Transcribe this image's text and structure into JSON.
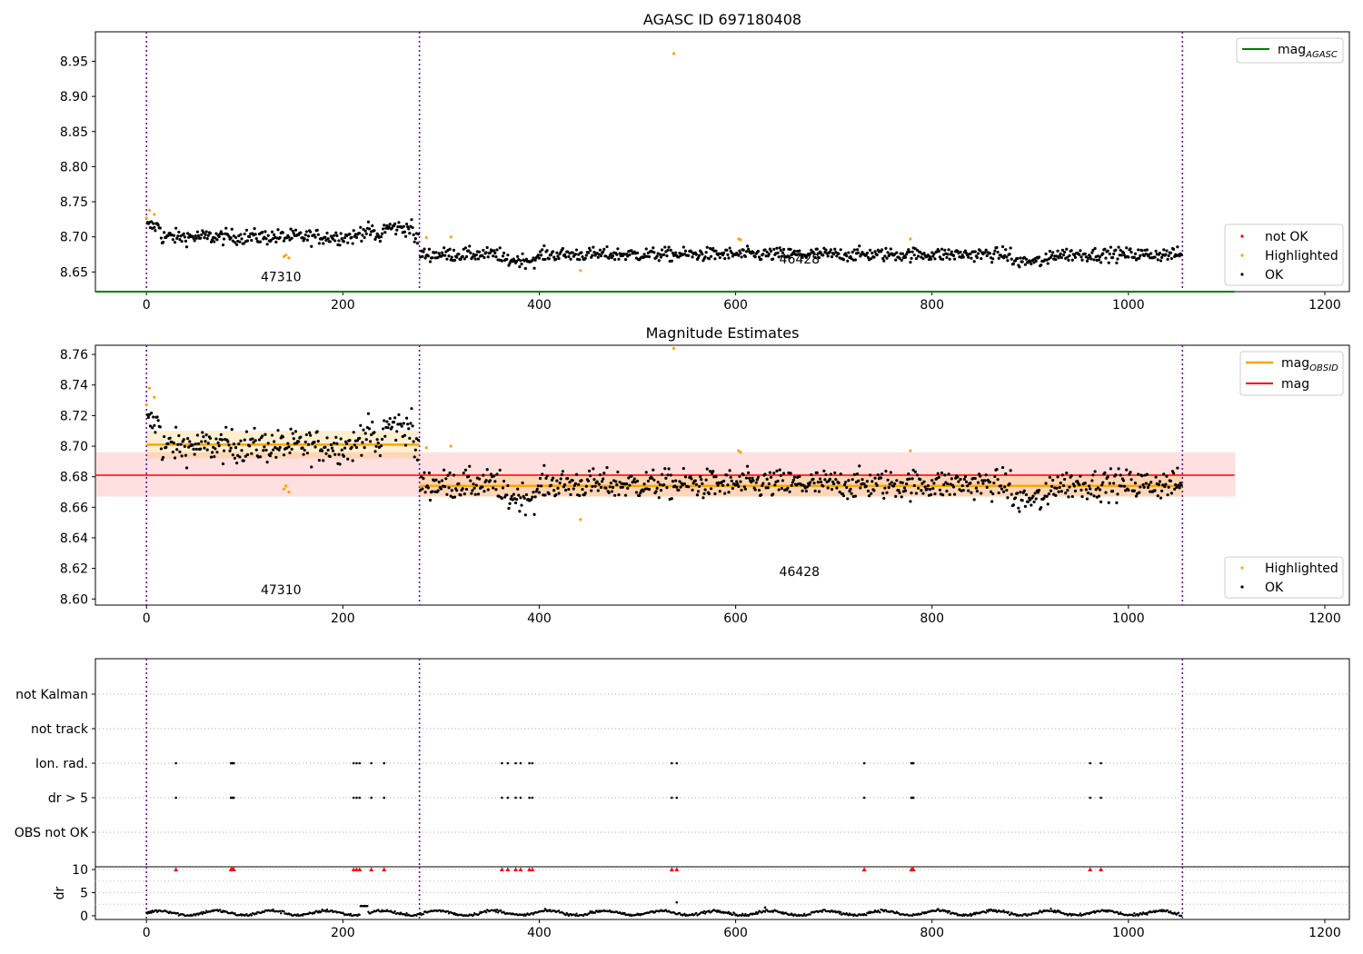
{
  "figure": {
    "title_top": "AGASC ID 697180408",
    "title_middle": "Magnitude Estimates"
  },
  "chart_data": [
    {
      "type": "scatter",
      "title": "AGASC ID 697180408",
      "xlim": [
        -52,
        1225
      ],
      "ylim": [
        8.622,
        8.992
      ],
      "xticks": [
        0,
        200,
        400,
        600,
        800,
        1000,
        1200
      ],
      "yticks": [
        8.65,
        8.7,
        8.75,
        8.8,
        8.85,
        8.9,
        8.95
      ],
      "obs_boundaries": [
        0,
        278,
        1055
      ],
      "obsid_labels": [
        {
          "text": "47310",
          "x": 137,
          "y": 8.637
        },
        {
          "text": "46428",
          "x": 665,
          "y": 8.662
        }
      ],
      "mag_agasc": 8.622,
      "legend_lines": [
        "mag_AGASC"
      ],
      "legend_points": [
        "not OK",
        "Highlighted",
        "OK"
      ],
      "series": [
        {
          "name": "OK",
          "segments": [
            {
              "x_start": 0,
              "x_end": 278,
              "base": 8.7,
              "scatter": 0.009,
              "profile": "obs1"
            },
            {
              "x_start": 278,
              "x_end": 1055,
              "base": 8.675,
              "scatter": 0.008,
              "profile": "obs2"
            }
          ]
        },
        {
          "name": "Highlighted",
          "points": [
            [
              0,
              8.727
            ],
            [
              3,
              8.738
            ],
            [
              8,
              8.732
            ],
            [
              140,
              8.672
            ],
            [
              142,
              8.674
            ],
            [
              145,
              8.67
            ],
            [
              285,
              8.699
            ],
            [
              310,
              8.7
            ],
            [
              442,
              8.652
            ],
            [
              537,
              8.961
            ],
            [
              605,
              8.696
            ],
            [
              603,
              8.697
            ],
            [
              778,
              8.697
            ]
          ]
        },
        {
          "name": "not OK",
          "points": []
        }
      ]
    },
    {
      "type": "scatter",
      "title": "Magnitude Estimates",
      "xlim": [
        -52,
        1225
      ],
      "ylim": [
        8.596,
        8.766
      ],
      "xticks": [
        0,
        200,
        400,
        600,
        800,
        1000,
        1200
      ],
      "yticks": [
        8.6,
        8.62,
        8.64,
        8.66,
        8.68,
        8.7,
        8.72,
        8.74,
        8.76
      ],
      "obs_boundaries": [
        0,
        278,
        1055
      ],
      "obsid_labels": [
        {
          "text": "47310",
          "x": 137,
          "y": 8.603
        },
        {
          "text": "46428",
          "x": 665,
          "y": 8.615
        }
      ],
      "mag_line": {
        "y": 8.681,
        "band": [
          8.667,
          8.696
        ],
        "x_start": -52,
        "x_end": 1108
      },
      "mag_obsid": [
        {
          "x_start": 0,
          "x_end": 278,
          "y": 8.701,
          "band": [
            8.692,
            8.71
          ]
        },
        {
          "x_start": 278,
          "x_end": 1055,
          "y": 8.674,
          "band": [
            8.667,
            8.682
          ]
        }
      ],
      "legend_lines": [
        "mag_OBSID",
        "mag"
      ],
      "legend_points": [
        "Highlighted",
        "OK"
      ]
    },
    {
      "type": "scatter",
      "xlim": [
        -52,
        1225
      ],
      "flag_rows": [
        "not Kalman",
        "not track",
        "Ion. rad.",
        "dr > 5",
        "OBS not OK"
      ],
      "flag_x": [
        30,
        86,
        87,
        88,
        89,
        211,
        214,
        217,
        229,
        242,
        362,
        368,
        376,
        381,
        390,
        393,
        535,
        540,
        731,
        779,
        780,
        781,
        961,
        972
      ],
      "dr_ylabel": "dr",
      "dr_yticks": [
        0,
        5,
        10
      ],
      "dr_ylim": [
        -0.8,
        10.6
      ],
      "dr_outliers": [
        [
          540,
          2.9
        ],
        [
          630,
          1.8
        ]
      ],
      "dr_high_x": [
        30,
        86,
        87,
        88,
        89,
        211,
        214,
        217,
        229,
        242,
        362,
        368,
        376,
        381,
        390,
        393,
        535,
        540,
        731,
        779,
        780,
        781,
        961,
        972
      ],
      "xticks": [
        0,
        200,
        400,
        600,
        800,
        1000,
        1200
      ]
    }
  ]
}
